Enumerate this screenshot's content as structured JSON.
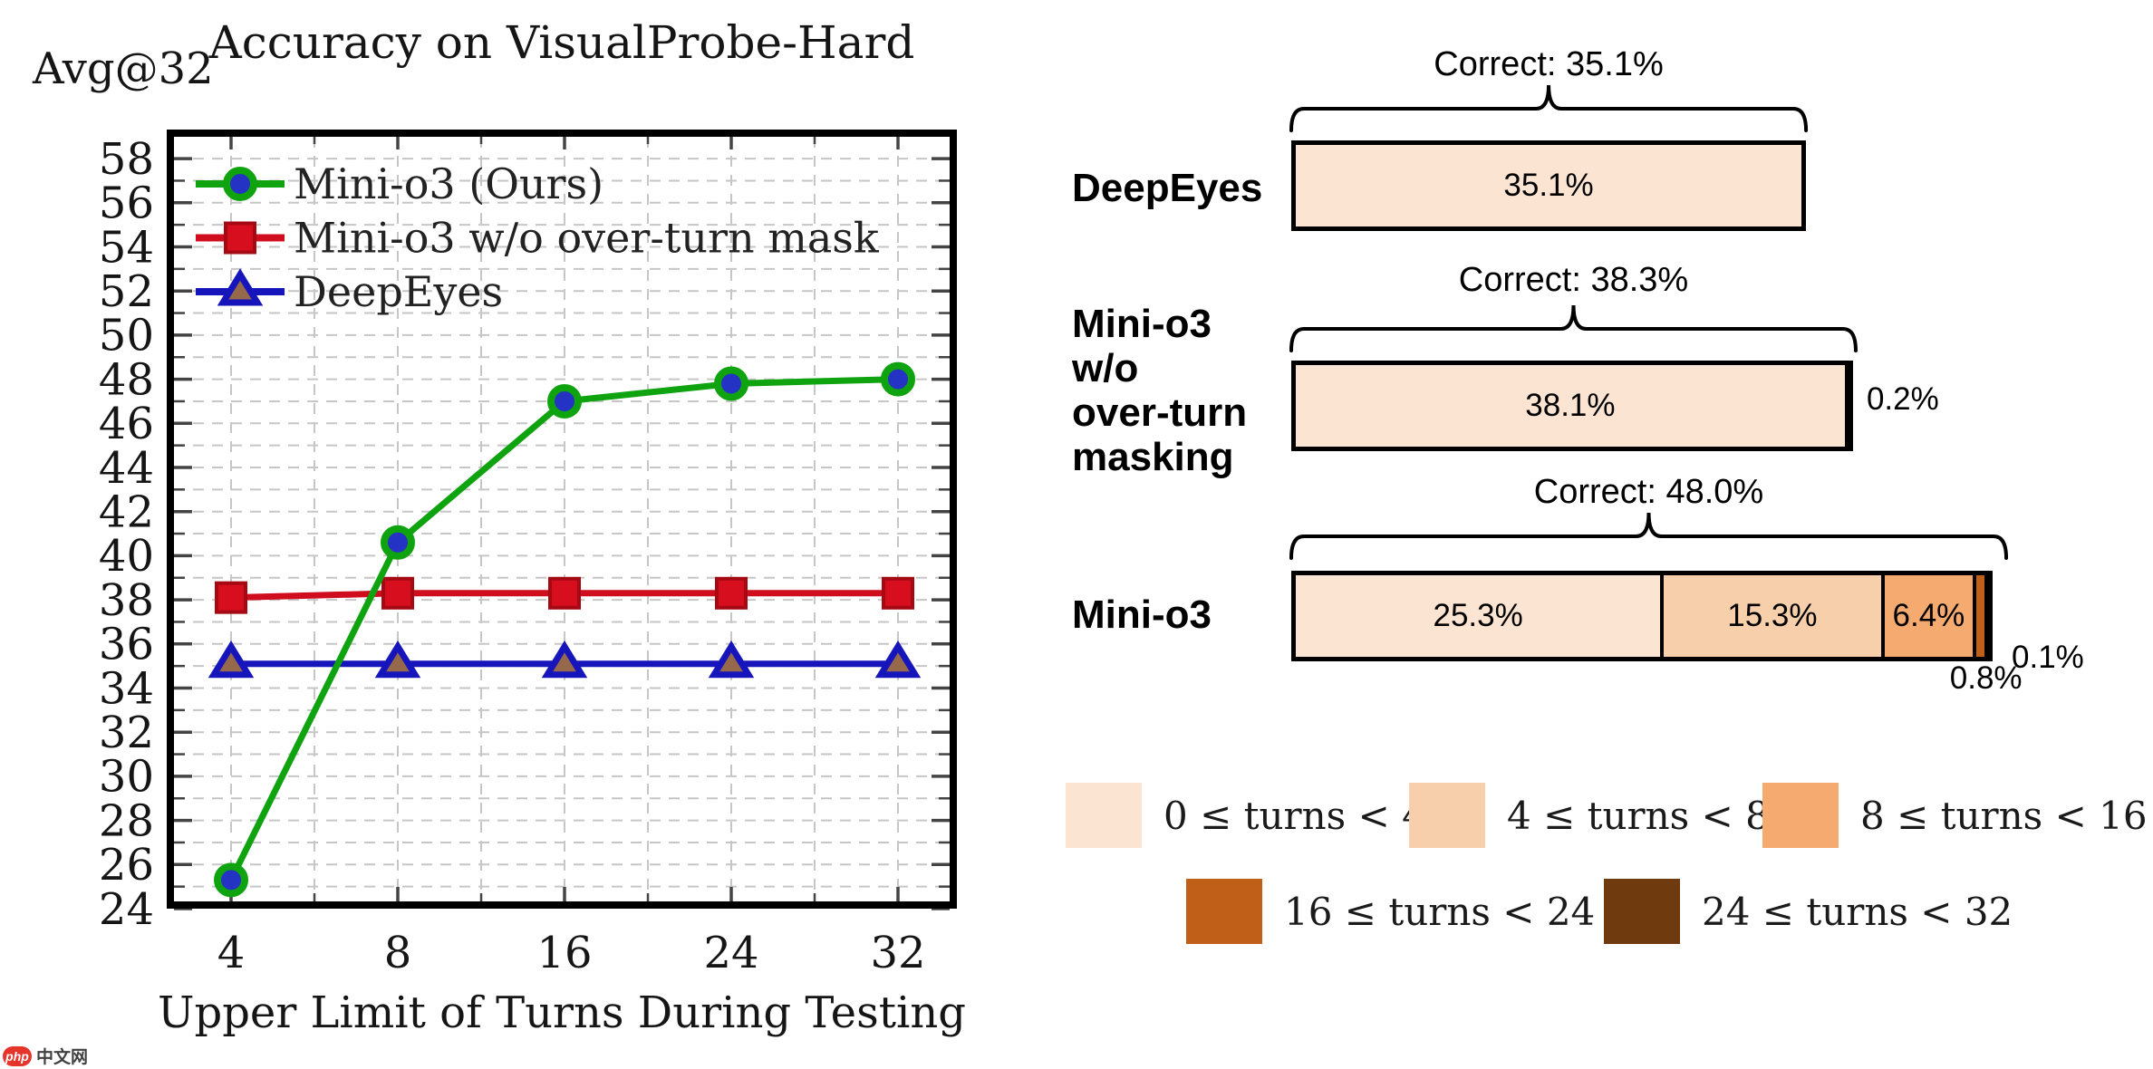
{
  "chart_data": [
    {
      "type": "line",
      "title": "Accuracy on VisualProbe-Hard",
      "ylabel": "Avg@32",
      "xlabel": "Upper Limit of Turns During Testing",
      "x": [
        "4",
        "8",
        "16",
        "24",
        "32"
      ],
      "ylim": [
        24,
        58
      ],
      "ytick_step": 2,
      "grid": true,
      "grid_color": "#c6c6c6",
      "legend_position": "upper left",
      "series": [
        {
          "name": "Mini-o3 (Ours)",
          "values": [
            25.3,
            40.6,
            47.0,
            47.8,
            48.0
          ],
          "color": "#0fa30f",
          "marker": "circle",
          "marker_face": "#2433c4"
        },
        {
          "name": "Mini-o3 w/o over-turn mask",
          "values": [
            38.1,
            38.3,
            38.3,
            38.3,
            38.3
          ],
          "color": "#cf0d1d",
          "marker": "square",
          "marker_face": "#d60e1e"
        },
        {
          "name": "DeepEyes",
          "values": [
            35.1,
            35.1,
            35.1,
            35.1,
            35.1
          ],
          "color": "#1515bb",
          "marker": "triangle",
          "marker_face": "#96684c"
        }
      ]
    },
    {
      "type": "bar",
      "orientation": "horizontal_stacked",
      "unit": "percent",
      "bucket_colors": [
        "#fbe4d1",
        "#f8cfab",
        "#f5aa70",
        "#c05f17",
        "#6f3a0e"
      ],
      "legend": [
        "0 ≤ turns < 4",
        "4 ≤ turns < 8",
        "8 ≤ turns < 16",
        "16 ≤ turns < 24",
        "24 ≤ turns < 32"
      ],
      "rows": [
        {
          "label_lines": [
            "DeepEyes"
          ],
          "total_label": "Correct: 35.1%",
          "total": 35.1,
          "segments": [
            {
              "bucket": 0,
              "pct": 35.1,
              "label": "35.1%",
              "placement": "inside"
            }
          ]
        },
        {
          "label_lines": [
            "Mini-o3",
            "w/o",
            "over-turn",
            "masking"
          ],
          "total_label": "Correct: 38.3%",
          "total": 38.3,
          "segments": [
            {
              "bucket": 0,
              "pct": 38.1,
              "label": "38.1%",
              "placement": "inside"
            },
            {
              "bucket": 1,
              "pct": 0.2,
              "label": "0.2%",
              "placement": "right"
            }
          ]
        },
        {
          "label_lines": [
            "Mini-o3"
          ],
          "total_label": "Correct: 48.0%",
          "total": 48.0,
          "segments": [
            {
              "bucket": 0,
              "pct": 25.3,
              "label": "25.3%",
              "placement": "inside"
            },
            {
              "bucket": 1,
              "pct": 15.3,
              "label": "15.3%",
              "placement": "inside"
            },
            {
              "bucket": 2,
              "pct": 6.4,
              "label": "6.4%",
              "placement": "inside"
            },
            {
              "bucket": 3,
              "pct": 0.8,
              "label": "0.8%",
              "placement": "below"
            },
            {
              "bucket": 4,
              "pct": 0.1,
              "label": "0.1%",
              "placement": "corner"
            }
          ]
        }
      ]
    }
  ],
  "watermark": {
    "badge": "php",
    "text": "中文网"
  }
}
